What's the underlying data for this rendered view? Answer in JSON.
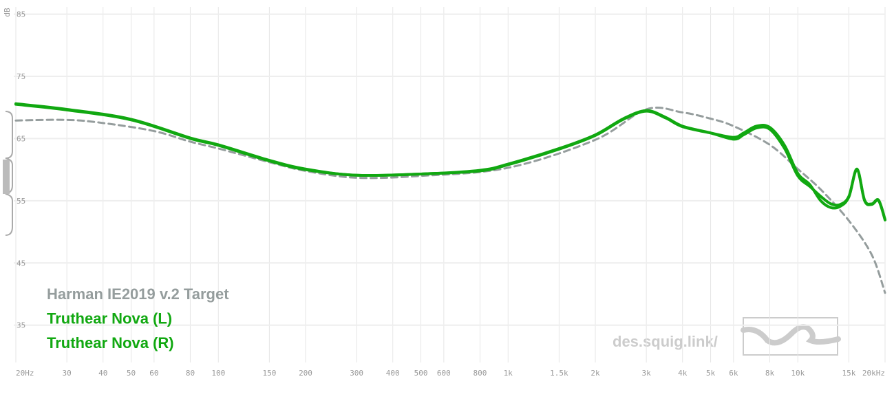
{
  "chart_data": {
    "type": "line",
    "y_label": "dB",
    "watermark": "des.squig.link/",
    "xscale": "log",
    "grid": true,
    "xlim": [
      20,
      20000
    ],
    "ylim": [
      29,
      86.5
    ],
    "xticks": [
      {
        "value": 20,
        "label": "20Hz"
      },
      30,
      40,
      50,
      60,
      80,
      100,
      150,
      200,
      300,
      400,
      500,
      600,
      800,
      {
        "value": 1000,
        "label": "1k"
      },
      {
        "value": 1500,
        "label": "1.5k"
      },
      {
        "value": 2000,
        "label": "2k"
      },
      {
        "value": 3000,
        "label": "3k"
      },
      {
        "value": 4000,
        "label": "4k"
      },
      {
        "value": 5000,
        "label": "5k"
      },
      {
        "value": 6000,
        "label": "6k"
      },
      {
        "value": 8000,
        "label": "8k"
      },
      {
        "value": 10000,
        "label": "10k"
      },
      {
        "value": 15000,
        "label": "15k"
      },
      {
        "value": 20000,
        "label": "20kHz"
      }
    ],
    "yticks": [
      35,
      45,
      55,
      65,
      75,
      85
    ],
    "series": [
      {
        "name": "Harman IE2019 v.2 Target",
        "color": "#959d9d",
        "dashed": true,
        "x": [
          20,
          30,
          40,
          60,
          80,
          100,
          150,
          200,
          300,
          500,
          1000,
          2000,
          3000,
          4000,
          5000,
          6000,
          8000,
          10000,
          12000,
          15000,
          18000,
          20000
        ],
        "values": [
          67.9,
          68.0,
          67.5,
          66.2,
          64.5,
          63.4,
          61.2,
          59.8,
          58.7,
          59.0,
          60.3,
          64.8,
          69.7,
          69.2,
          68.2,
          67.0,
          64.0,
          60.1,
          56.8,
          51.8,
          46.3,
          40.2
        ]
      },
      {
        "name": "Truthear Nova (L)",
        "color": "#11a811",
        "dashed": false,
        "x": [
          20,
          30,
          50,
          80,
          100,
          150,
          200,
          300,
          500,
          800,
          1000,
          1500,
          2000,
          2500,
          3000,
          3500,
          4000,
          5000,
          6000,
          6500,
          7200,
          8000,
          9000,
          10000,
          11000,
          12000,
          13000,
          14000,
          15000,
          16000,
          17000,
          18000,
          19000,
          20000
        ],
        "values": [
          70.6,
          69.7,
          68.1,
          65.1,
          64.0,
          61.5,
          60.1,
          59.1,
          59.3,
          59.9,
          60.9,
          63.4,
          65.6,
          68.2,
          69.5,
          68.4,
          67.0,
          65.9,
          64.9,
          65.6,
          66.7,
          66.5,
          63.4,
          59.0,
          57.3,
          55.7,
          54.5,
          54.4,
          55.7,
          60.1,
          55.1,
          54.5,
          55.1,
          52.0
        ]
      },
      {
        "name": "Truthear Nova (R)",
        "color": "#11a811",
        "dashed": false,
        "x": [
          20,
          30,
          50,
          80,
          100,
          150,
          200,
          300,
          500,
          800,
          1000,
          1500,
          2000,
          2500,
          3000,
          3500,
          4000,
          5000,
          6000,
          6500,
          7200,
          8000,
          9000,
          10000,
          11000,
          12000,
          13000,
          14000,
          15000,
          16000,
          17000,
          18000,
          19000,
          20000
        ],
        "values": [
          70.5,
          69.6,
          68.0,
          65.0,
          63.9,
          61.4,
          60.0,
          59.1,
          59.3,
          59.8,
          60.8,
          63.3,
          65.5,
          68.1,
          69.4,
          68.3,
          66.9,
          65.9,
          65.2,
          65.9,
          67.0,
          66.8,
          63.9,
          59.4,
          57.6,
          55.0,
          53.9,
          54.1,
          55.6,
          60.0,
          55.0,
          54.4,
          55.0,
          51.9
        ]
      }
    ]
  }
}
